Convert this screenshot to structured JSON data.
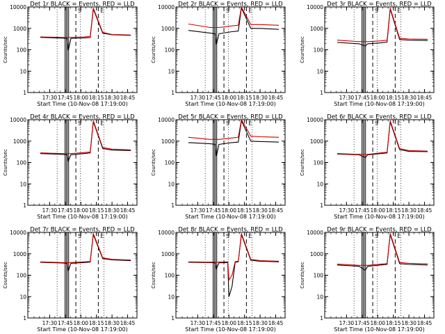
{
  "chart_data": [
    {
      "type": "line",
      "title": "Det 1r BLACK = Events, RED = LLD",
      "xlabel": "Start Time (10-Nov-08 17:19:00)",
      "ylabel": "Counts/sec",
      "yscale": "log",
      "ylim": [
        1,
        10000
      ],
      "y_ticks": [
        "1",
        "10",
        "100",
        "1000",
        "10000"
      ],
      "x_ticks": [
        "17:30",
        "17:45",
        "18:00",
        "18:15",
        "18:30",
        "18:45"
      ],
      "markers": [
        "S",
        "E"
      ],
      "series": [
        {
          "color": "#000000",
          "points": [
            [
              17.35,
              380
            ],
            [
              17.7,
              350
            ],
            [
              17.78,
              340
            ],
            [
              17.8,
              95
            ],
            [
              17.84,
              340
            ],
            [
              18.05,
              360
            ],
            [
              18.15,
              370
            ],
            [
              18.2,
              8000
            ],
            [
              18.35,
              600
            ],
            [
              18.5,
              500
            ],
            [
              18.8,
              470
            ]
          ]
        },
        {
          "color": "#cc0000",
          "points": [
            [
              17.35,
              400
            ],
            [
              17.7,
              380
            ],
            [
              17.84,
              380
            ],
            [
              18.05,
              400
            ],
            [
              18.15,
              420
            ],
            [
              18.2,
              9000
            ],
            [
              18.35,
              650
            ],
            [
              18.5,
              520
            ],
            [
              18.8,
              490
            ]
          ]
        }
      ]
    },
    {
      "type": "line",
      "title": "Det 2r BLACK = Events, RED = LLD",
      "xlabel": "Start Time (10-Nov-08 17:19:00)",
      "ylabel": "Counts/sec",
      "yscale": "log",
      "ylim": [
        1,
        10000
      ],
      "y_ticks": [
        "1",
        "10",
        "100",
        "1000",
        "10000"
      ],
      "x_ticks": [
        "17:30",
        "17:45",
        "18:00",
        "18:15",
        "18:30",
        "18:45"
      ],
      "markers": [
        "S",
        "E"
      ],
      "series": [
        {
          "color": "#000000",
          "points": [
            [
              17.35,
              800
            ],
            [
              17.7,
              600
            ],
            [
              17.78,
              560
            ],
            [
              17.8,
              180
            ],
            [
              17.84,
              560
            ],
            [
              18.05,
              700
            ],
            [
              18.15,
              750
            ],
            [
              18.2,
              9000
            ],
            [
              18.35,
              1000
            ],
            [
              18.5,
              1000
            ],
            [
              18.8,
              900
            ]
          ]
        },
        {
          "color": "#cc0000",
          "points": [
            [
              17.35,
              1600
            ],
            [
              17.7,
              1100
            ],
            [
              17.84,
              1100
            ],
            [
              18.05,
              1300
            ],
            [
              18.15,
              1400
            ],
            [
              18.2,
              10000
            ],
            [
              18.35,
              1500
            ],
            [
              18.5,
              1500
            ],
            [
              18.8,
              1400
            ]
          ]
        }
      ]
    },
    {
      "type": "line",
      "title": "Det 3r BLACK = Events, RED = LLD",
      "xlabel": "Start Time (10-Nov-08 17:19:00)",
      "ylabel": "Counts/sec",
      "yscale": "log",
      "ylim": [
        1,
        10000
      ],
      "y_ticks": [
        "1",
        "10",
        "100",
        "1000",
        "10000"
      ],
      "x_ticks": [
        "17:30",
        "17:45",
        "18:00",
        "18:15",
        "18:30",
        "18:45"
      ],
      "markers": [
        "S",
        "E"
      ],
      "series": [
        {
          "color": "#000000",
          "points": [
            [
              17.35,
              220
            ],
            [
              17.7,
              190
            ],
            [
              17.8,
              150
            ],
            [
              17.84,
              190
            ],
            [
              18.05,
              210
            ],
            [
              18.15,
              230
            ],
            [
              18.2,
              8000
            ],
            [
              18.35,
              300
            ],
            [
              18.5,
              280
            ],
            [
              18.8,
              270
            ]
          ]
        },
        {
          "color": "#cc0000",
          "points": [
            [
              17.35,
              280
            ],
            [
              17.7,
              240
            ],
            [
              17.84,
              240
            ],
            [
              18.05,
              260
            ],
            [
              18.15,
              280
            ],
            [
              18.2,
              9000
            ],
            [
              18.35,
              350
            ],
            [
              18.5,
              320
            ],
            [
              18.8,
              310
            ]
          ]
        }
      ]
    },
    {
      "type": "line",
      "title": "Det 4r BLACK = Events, RED = LLD",
      "xlabel": "Start Time (10-Nov-08 17:19:00)",
      "ylabel": "Counts/sec",
      "yscale": "log",
      "ylim": [
        1,
        10000
      ],
      "y_ticks": [
        "1",
        "10",
        "100",
        "1000",
        "10000"
      ],
      "x_ticks": [
        "17:30",
        "17:45",
        "18:00",
        "18:15",
        "18:30",
        "18:45"
      ],
      "markers": [
        "S",
        "E"
      ],
      "series": [
        {
          "color": "#000000",
          "points": [
            [
              17.35,
              260
            ],
            [
              17.7,
              240
            ],
            [
              17.78,
              230
            ],
            [
              17.8,
              120
            ],
            [
              17.84,
              230
            ],
            [
              18.05,
              260
            ],
            [
              18.15,
              280
            ],
            [
              18.2,
              8000
            ],
            [
              18.35,
              450
            ],
            [
              18.5,
              380
            ],
            [
              18.8,
              360
            ]
          ]
        },
        {
          "color": "#cc0000",
          "points": [
            [
              17.35,
              280
            ],
            [
              17.7,
              260
            ],
            [
              17.84,
              260
            ],
            [
              18.05,
              290
            ],
            [
              18.15,
              310
            ],
            [
              18.2,
              9000
            ],
            [
              18.35,
              500
            ],
            [
              18.5,
              420
            ],
            [
              18.8,
              390
            ]
          ]
        }
      ]
    },
    {
      "type": "line",
      "title": "Det 5r BLACK = Events, RED = LLD",
      "xlabel": "Start Time (10-Nov-08 17:19:00)",
      "ylabel": "Counts/sec",
      "yscale": "log",
      "ylim": [
        1,
        10000
      ],
      "y_ticks": [
        "1",
        "10",
        "100",
        "1000",
        "10000"
      ],
      "x_ticks": [
        "17:30",
        "17:45",
        "18:00",
        "18:15",
        "18:30",
        "18:45"
      ],
      "markers": [
        "S",
        "E"
      ],
      "series": [
        {
          "color": "#000000",
          "points": [
            [
              17.35,
              850
            ],
            [
              17.7,
              750
            ],
            [
              17.78,
              700
            ],
            [
              17.8,
              200
            ],
            [
              17.84,
              700
            ],
            [
              18.05,
              850
            ],
            [
              18.15,
              900
            ],
            [
              18.2,
              9000
            ],
            [
              18.35,
              1000
            ],
            [
              18.5,
              950
            ],
            [
              18.8,
              900
            ]
          ]
        },
        {
          "color": "#cc0000",
          "points": [
            [
              17.35,
              1500
            ],
            [
              17.7,
              1200
            ],
            [
              17.84,
              1200
            ],
            [
              18.05,
              1400
            ],
            [
              18.15,
              1500
            ],
            [
              18.2,
              10000
            ],
            [
              18.35,
              1700
            ],
            [
              18.5,
              1600
            ],
            [
              18.8,
              1500
            ]
          ]
        }
      ]
    },
    {
      "type": "line",
      "title": "Det 6r BLACK = Events, RED = LLD",
      "xlabel": "Start Time (10-Nov-08 17:19:00)",
      "ylabel": "Counts/sec",
      "yscale": "log",
      "ylim": [
        1,
        10000
      ],
      "y_ticks": [
        "1",
        "10",
        "100",
        "1000",
        "10000"
      ],
      "x_ticks": [
        "17:30",
        "17:45",
        "18:00",
        "18:15",
        "18:30",
        "18:45"
      ],
      "markers": [
        "S",
        "E"
      ],
      "series": [
        {
          "color": "#000000",
          "points": [
            [
              17.35,
              250
            ],
            [
              17.7,
              230
            ],
            [
              17.8,
              170
            ],
            [
              17.84,
              230
            ],
            [
              18.05,
              260
            ],
            [
              18.15,
              280
            ],
            [
              18.2,
              8000
            ],
            [
              18.35,
              400
            ],
            [
              18.5,
              330
            ],
            [
              18.8,
              320
            ]
          ]
        },
        {
          "color": "#cc0000",
          "points": [
            [
              17.35,
              260
            ],
            [
              17.7,
              240
            ],
            [
              17.84,
              240
            ],
            [
              18.05,
              280
            ],
            [
              18.15,
              300
            ],
            [
              18.2,
              9000
            ],
            [
              18.35,
              450
            ],
            [
              18.5,
              360
            ],
            [
              18.8,
              340
            ]
          ]
        }
      ]
    },
    {
      "type": "line",
      "title": "Det 7r BLACK = Events, RED = LLD",
      "xlabel": "Start Time (10-Nov-08 17:19:00)",
      "ylabel": "Counts/sec",
      "yscale": "log",
      "ylim": [
        1,
        10000
      ],
      "y_ticks": [
        "1",
        "10",
        "100",
        "1000",
        "10000"
      ],
      "x_ticks": [
        "17:30",
        "17:45",
        "18:00",
        "18:15",
        "18:30",
        "18:45"
      ],
      "markers": [
        "S",
        "E"
      ],
      "series": [
        {
          "color": "#000000",
          "points": [
            [
              17.35,
              400
            ],
            [
              17.7,
              370
            ],
            [
              17.78,
              360
            ],
            [
              17.8,
              160
            ],
            [
              17.84,
              360
            ],
            [
              18.05,
              390
            ],
            [
              18.15,
              410
            ],
            [
              18.2,
              8000
            ],
            [
              18.35,
              600
            ],
            [
              18.5,
              520
            ],
            [
              18.8,
              480
            ]
          ]
        },
        {
          "color": "#cc0000",
          "points": [
            [
              17.35,
              420
            ],
            [
              17.7,
              390
            ],
            [
              17.84,
              390
            ],
            [
              18.05,
              420
            ],
            [
              18.15,
              440
            ],
            [
              18.2,
              9000
            ],
            [
              18.35,
              650
            ],
            [
              18.5,
              550
            ],
            [
              18.8,
              510
            ]
          ]
        }
      ]
    },
    {
      "type": "line",
      "title": "Det 8r BLACK = Events, RED = LLD",
      "xlabel": "Start Time (10-Nov-08 17:19:00)",
      "ylabel": "Counts/sec",
      "yscale": "log",
      "ylim": [
        1,
        10000
      ],
      "y_ticks": [
        "1",
        "10",
        "100",
        "1000",
        "10000"
      ],
      "x_ticks": [
        "17:30",
        "17:45",
        "18:00",
        "18:15",
        "18:30",
        "18:45"
      ],
      "markers": [
        "S",
        "E"
      ],
      "series": [
        {
          "color": "#000000",
          "points": [
            [
              17.35,
              400
            ],
            [
              17.7,
              390
            ],
            [
              17.78,
              380
            ],
            [
              17.8,
              200
            ],
            [
              17.84,
              380
            ],
            [
              17.98,
              390
            ],
            [
              18.0,
              10
            ],
            [
              18.05,
              30
            ],
            [
              18.1,
              400
            ],
            [
              18.15,
              420
            ],
            [
              18.2,
              8000
            ],
            [
              18.35,
              500
            ],
            [
              18.5,
              450
            ],
            [
              18.8,
              420
            ]
          ]
        },
        {
          "color": "#cc0000",
          "points": [
            [
              17.35,
              420
            ],
            [
              17.7,
              410
            ],
            [
              17.84,
              410
            ],
            [
              17.98,
              420
            ],
            [
              18.0,
              60
            ],
            [
              18.05,
              100
            ],
            [
              18.1,
              430
            ],
            [
              18.15,
              450
            ],
            [
              18.2,
              9000
            ],
            [
              18.35,
              550
            ],
            [
              18.5,
              480
            ],
            [
              18.8,
              450
            ]
          ]
        }
      ]
    },
    {
      "type": "line",
      "title": "Det 9r BLACK = Events, RED = LLD",
      "xlabel": "Start Time (10-Nov-08 17:19:00)",
      "ylabel": "Counts/sec",
      "yscale": "log",
      "ylim": [
        1,
        10000
      ],
      "y_ticks": [
        "1",
        "10",
        "100",
        "1000",
        "10000"
      ],
      "x_ticks": [
        "17:30",
        "17:45",
        "18:00",
        "18:15",
        "18:30",
        "18:45"
      ],
      "markers": [
        "S",
        "E"
      ],
      "series": [
        {
          "color": "#000000",
          "points": [
            [
              17.35,
              300
            ],
            [
              17.7,
              260
            ],
            [
              17.8,
              170
            ],
            [
              17.84,
              260
            ],
            [
              18.05,
              300
            ],
            [
              18.15,
              320
            ],
            [
              18.2,
              8000
            ],
            [
              18.35,
              350
            ],
            [
              18.5,
              320
            ],
            [
              18.8,
              300
            ]
          ]
        },
        {
          "color": "#cc0000",
          "points": [
            [
              17.35,
              330
            ],
            [
              17.7,
              290
            ],
            [
              17.84,
              290
            ],
            [
              18.05,
              330
            ],
            [
              18.15,
              350
            ],
            [
              18.2,
              9000
            ],
            [
              18.35,
              400
            ],
            [
              18.5,
              360
            ],
            [
              18.8,
              340
            ]
          ]
        }
      ]
    }
  ]
}
